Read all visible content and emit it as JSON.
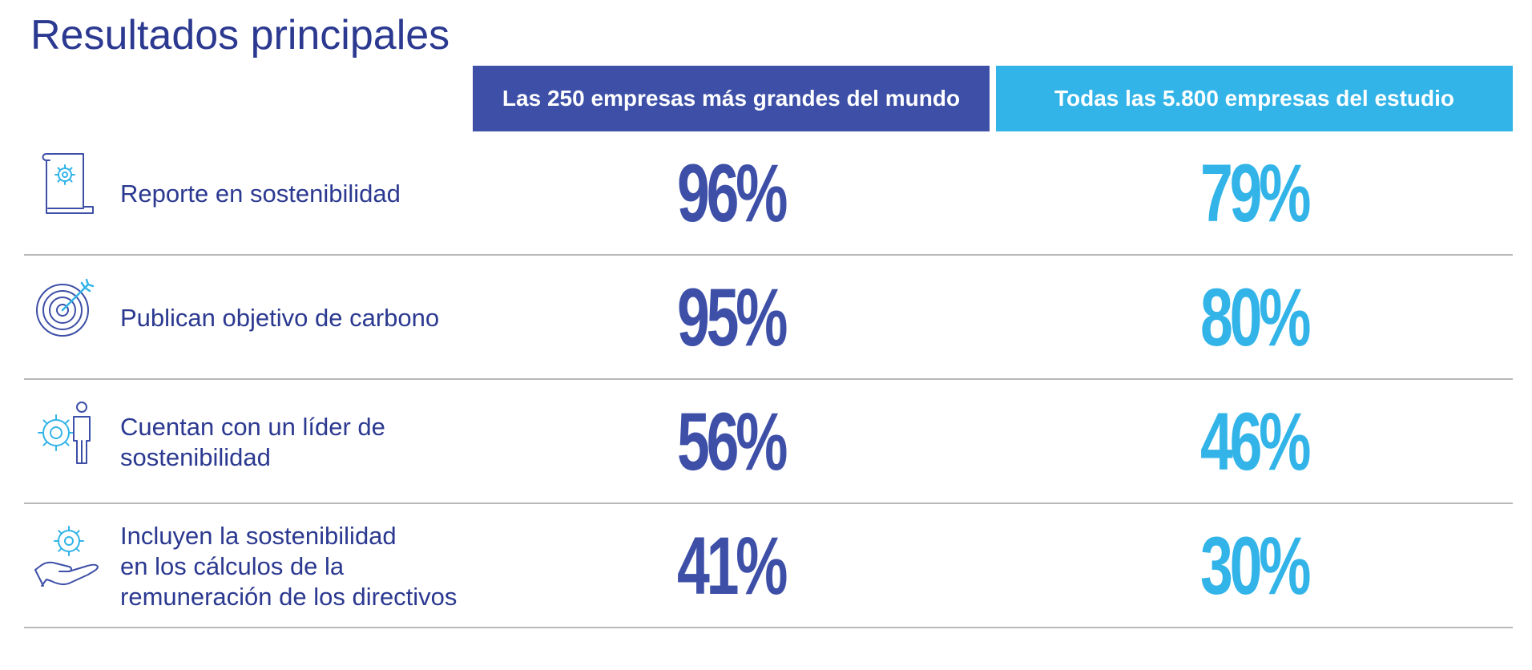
{
  "title": "Resultados principales",
  "colors": {
    "dark_blue": "#3d4fa7",
    "light_blue": "#32b4e8",
    "text": "#2b3990"
  },
  "headers": [
    "Las 250 empresas más grandes del mundo",
    "Todas las 5.800 empresas del estudio"
  ],
  "rows": [
    {
      "icon": "document-gear-icon",
      "label_lines": [
        "Reporte en sostenibilidad"
      ],
      "value_250": "96%",
      "value_5800": "79%"
    },
    {
      "icon": "target-arrow-icon",
      "label_lines": [
        "Publican objetivo de carbono"
      ],
      "value_250": "95%",
      "value_5800": "80%"
    },
    {
      "icon": "gears-person-icon",
      "label_lines": [
        "Cuentan con un líder de",
        "sostenibilidad"
      ],
      "value_250": "56%",
      "value_5800": "46%"
    },
    {
      "icon": "hand-gear-icon",
      "label_lines": [
        "Incluyen la sostenibilidad",
        "en los cálculos de la",
        "remuneración de los directivos"
      ],
      "value_250": "41%",
      "value_5800": "30%"
    }
  ],
  "chart_data": {
    "type": "table",
    "columns": [
      "Las 250 empresas más grandes del mundo",
      "Todas las 5.800 empresas del estudio"
    ],
    "rows": [
      {
        "label": "Reporte en sostenibilidad",
        "values": [
          96,
          79
        ]
      },
      {
        "label": "Publican objetivo de carbono",
        "values": [
          95,
          80
        ]
      },
      {
        "label": "Cuentan con un líder de sostenibilidad",
        "values": [
          56,
          46
        ]
      },
      {
        "label": "Incluyen la sostenibilidad en los cálculos de la remuneración de los directivos",
        "values": [
          41,
          30
        ]
      }
    ],
    "unit": "%"
  }
}
